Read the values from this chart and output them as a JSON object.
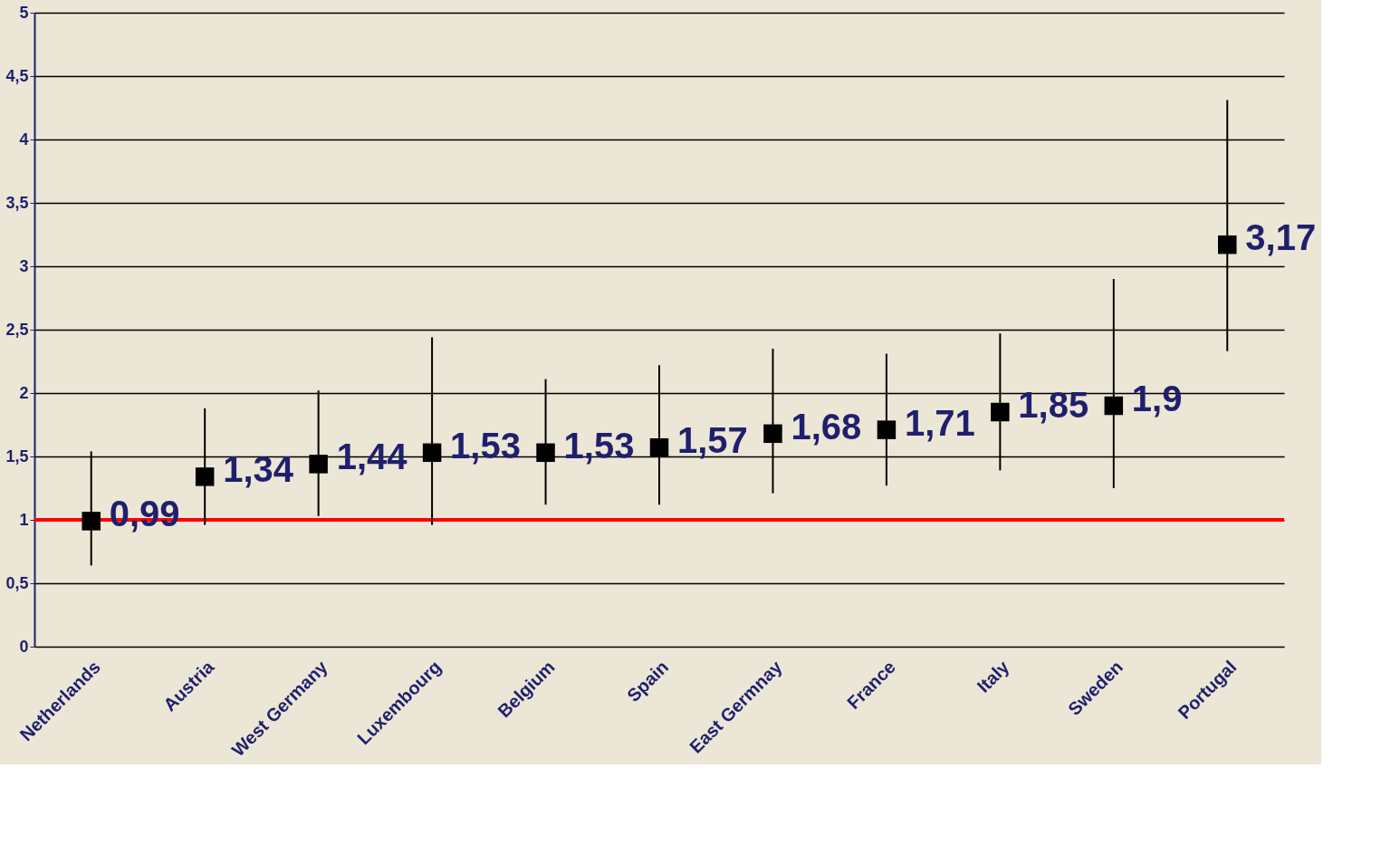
{
  "chart_data": {
    "type": "scatter",
    "categories": [
      "Netherlands",
      "Austria",
      "West Germany",
      "Luxembourg",
      "Belgium",
      "Spain",
      "East Germnay",
      "France",
      "Italy",
      "Sweden",
      "Portugal"
    ],
    "series": [
      {
        "color": "#000000",
        "values": [
          0.99,
          1.34,
          1.44,
          1.53,
          1.53,
          1.57,
          1.68,
          1.71,
          1.85,
          1.9,
          3.17
        ],
        "value_labels": [
          "0,99",
          "1,34",
          "1,44",
          "1,53",
          "1,53",
          "1,57",
          "1,68",
          "1,71",
          "1,85",
          "1,9",
          "3,17"
        ],
        "errors": [
          [
            0.64,
            1.54
          ],
          [
            0.96,
            1.88
          ],
          [
            1.03,
            2.02
          ],
          [
            0.96,
            2.44
          ],
          [
            1.12,
            2.11
          ],
          [
            1.12,
            2.22
          ],
          [
            1.21,
            2.35
          ],
          [
            1.27,
            2.31
          ],
          [
            1.39,
            2.47
          ],
          [
            1.25,
            2.9
          ],
          [
            2.33,
            4.31
          ]
        ]
      }
    ],
    "ylim": [
      0,
      5
    ],
    "yticks": [
      0,
      {
        "value": 0.5,
        "label": "0,5"
      },
      1,
      {
        "value": 1.5,
        "label": "1,5"
      },
      2,
      {
        "value": 2.5,
        "label": "2,5"
      },
      3,
      {
        "value": 3.5,
        "label": "3,5"
      },
      4,
      {
        "value": 4.5,
        "label": "4,5"
      },
      5
    ],
    "ref_lines": [
      {
        "axis": "y",
        "value": 1,
        "color": "#ff0000",
        "line_style": "solid"
      }
    ],
    "marker": "square",
    "grid": "y"
  }
}
